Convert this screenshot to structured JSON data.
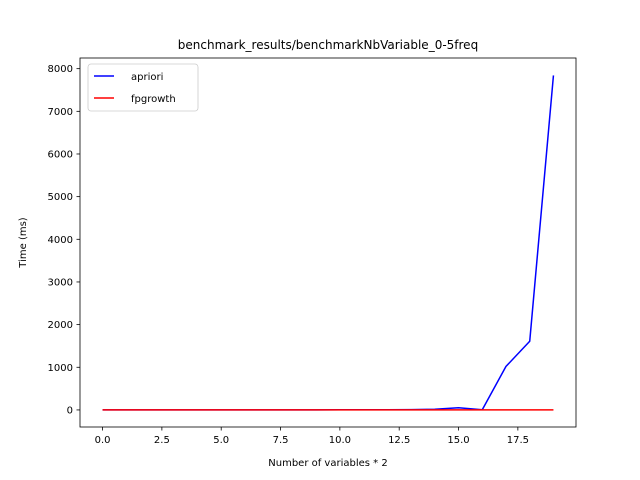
{
  "chart_data": {
    "type": "line",
    "title": "benchmark_results/benchmarkNbVariable_0-5freq",
    "xlabel": "Number of variables * 2",
    "ylabel": "Time (ms)",
    "xlim": [
      -0.95,
      19.95
    ],
    "ylim": [
      -400,
      8250
    ],
    "xticks": [
      0.0,
      2.5,
      5.0,
      7.5,
      10.0,
      12.5,
      15.0,
      17.5
    ],
    "xtick_labels": [
      "0.0",
      "2.5",
      "5.0",
      "7.5",
      "10.0",
      "12.5",
      "15.0",
      "17.5"
    ],
    "yticks": [
      0,
      1000,
      2000,
      3000,
      4000,
      5000,
      6000,
      7000,
      8000
    ],
    "ytick_labels": [
      "0",
      "1000",
      "2000",
      "3000",
      "4000",
      "5000",
      "6000",
      "7000",
      "8000"
    ],
    "legend_position": "top-left",
    "x": [
      0,
      1,
      2,
      3,
      4,
      5,
      6,
      7,
      8,
      9,
      10,
      11,
      12,
      13,
      14,
      15,
      16,
      17,
      18,
      19
    ],
    "series": [
      {
        "name": "apriori",
        "color": "#0000ff",
        "values": [
          2,
          2,
          2,
          2,
          2,
          2,
          2,
          2,
          2,
          2,
          3,
          3,
          4,
          8,
          15,
          50,
          5,
          1020,
          1610,
          7840
        ]
      },
      {
        "name": "fpgrowth",
        "color": "#ff0000",
        "values": [
          1,
          1,
          1,
          1,
          1,
          1,
          1,
          1,
          1,
          1,
          1,
          1,
          1,
          1,
          1,
          1,
          1,
          1,
          1,
          1
        ]
      }
    ]
  }
}
